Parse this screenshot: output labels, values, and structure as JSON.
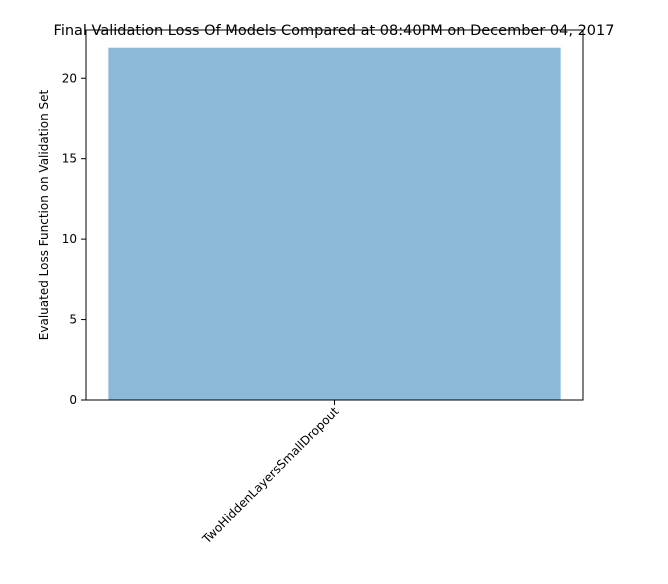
{
  "chart_data": {
    "type": "bar",
    "title": "Final Validation Loss Of Models Compared at 08:40PM on December 04, 2017",
    "xlabel": "",
    "ylabel": "Evaluated Loss Function on Validation Set",
    "categories": [
      "TwoHiddenLayersSmallDropout"
    ],
    "values": [
      21.9
    ],
    "ylim": [
      0,
      23
    ],
    "yticks": [
      0,
      5,
      10,
      15,
      20
    ],
    "grid": false,
    "bar_color": "#8db9d9",
    "x_tick_rotation_deg": 45
  }
}
